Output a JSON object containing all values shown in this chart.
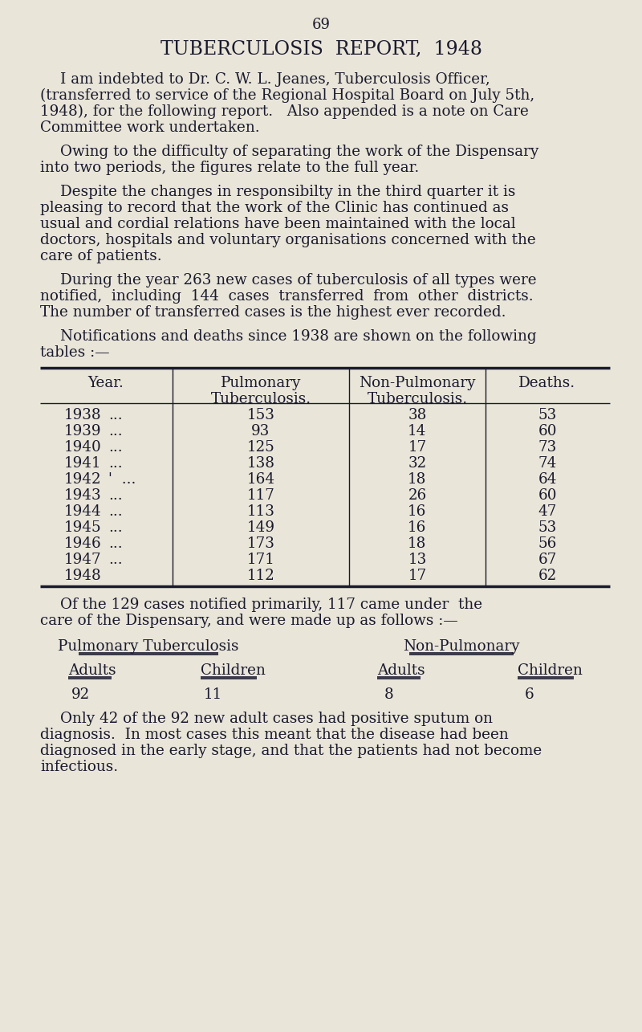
{
  "page_number": "69",
  "title": "TUBERCULOSIS  REPORT,  1948",
  "bg_color": "#e9e5d9",
  "text_color": "#1a1a2e",
  "body_font_size": 13.2,
  "title_font_size": 17,
  "table_data": [
    [
      "1938",
      "...",
      "153",
      "38",
      "53"
    ],
    [
      "1939",
      "...",
      "93",
      "14",
      "60"
    ],
    [
      "1940",
      "...",
      "125",
      "17",
      "73"
    ],
    [
      "1941",
      "...",
      "138",
      "32",
      "74"
    ],
    [
      "1942",
      "'  ...",
      "164",
      "18",
      "64"
    ],
    [
      "1943",
      "...",
      "117",
      "26",
      "60"
    ],
    [
      "1944",
      "...",
      "113",
      "16",
      "47"
    ],
    [
      "1945",
      "...",
      "149",
      "16",
      "53"
    ],
    [
      "1946",
      "...",
      "173",
      "18",
      "56"
    ],
    [
      "1947",
      "...",
      "171",
      "13",
      "67"
    ],
    [
      "1948",
      "",
      "112",
      "17",
      "62"
    ]
  ],
  "col_labels": [
    "Adults",
    "Children",
    "Adults",
    "Children"
  ],
  "col_values": [
    "92",
    "11",
    "8",
    "6"
  ]
}
